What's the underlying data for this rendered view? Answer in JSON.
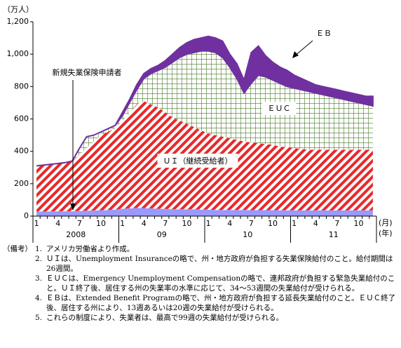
{
  "chart_data": {
    "type": "stacked-area",
    "y_unit": "（万人）",
    "x_unit_month": "(月)",
    "x_unit_year": "(年)",
    "categories": [
      "1",
      null,
      null,
      "4",
      null,
      null,
      "7",
      null,
      null,
      "10",
      null,
      null,
      "1",
      null,
      null,
      "4",
      null,
      null,
      "7",
      null,
      null,
      "10",
      null,
      null,
      "1",
      null,
      null,
      "4",
      null,
      null,
      "7",
      null,
      null,
      "10",
      null,
      null,
      "1",
      null,
      null,
      "4",
      null,
      null,
      "7",
      null,
      null,
      "10",
      null,
      null
    ],
    "year_labels": [
      "2008",
      "09",
      "10",
      "11"
    ],
    "ylim": [
      0,
      1200
    ],
    "yticks": [
      0,
      200,
      400,
      600,
      800,
      {
        "value": 1000,
        "label": "1,000"
      },
      {
        "value": 1200,
        "label": "1,200"
      }
    ],
    "series": [
      {
        "name": "新規失業保険申請者",
        "color": "#9999ff",
        "pattern": "solid",
        "values": [
          28,
          28,
          29,
          30,
          30,
          30,
          32,
          33,
          35,
          36,
          38,
          40,
          45,
          48,
          50,
          50,
          48,
          45,
          44,
          42,
          42,
          42,
          42,
          40,
          40,
          38,
          38,
          38,
          38,
          38,
          37,
          37,
          37,
          37,
          36,
          36,
          35,
          35,
          35,
          35,
          35,
          35,
          35,
          35,
          35,
          35,
          35,
          35
        ]
      },
      {
        "name": "ＵＩ（継続受給者）",
        "color": "#e8282a",
        "pattern": "hatch",
        "values": [
          282,
          287,
          291,
          295,
          300,
          310,
          348,
          387,
          425,
          464,
          482,
          505,
          545,
          592,
          640,
          660,
          642,
          625,
          596,
          568,
          548,
          528,
          508,
          490,
          470,
          462,
          452,
          442,
          432,
          422,
          418,
          413,
          408,
          403,
          394,
          389,
          385,
          380,
          375,
          375,
          375,
          375,
          375,
          375,
          375,
          375,
          375,
          375
        ]
      },
      {
        "name": "ＥＵＣ",
        "color": "#4a7a2a",
        "pattern": "grid",
        "values": [
          0,
          0,
          0,
          0,
          0,
          0,
          40,
          70,
          40,
          20,
          20,
          15,
          30,
          60,
          90,
          140,
          190,
          230,
          280,
          340,
          390,
          430,
          460,
          490,
          510,
          510,
          490,
          440,
          380,
          300,
          365,
          420,
          415,
          400,
          390,
          375,
          370,
          365,
          360,
          350,
          340,
          330,
          320,
          310,
          300,
          290,
          280,
          270
        ]
      },
      {
        "name": "ＥＢ",
        "color": "#7030a0",
        "pattern": "solid",
        "values": [
          0,
          0,
          0,
          0,
          0,
          0,
          0,
          0,
          0,
          0,
          0,
          0,
          20,
          20,
          30,
          30,
          30,
          30,
          40,
          50,
          60,
          70,
          80,
          80,
          90,
          90,
          100,
          80,
          90,
          80,
          190,
          180,
          130,
          110,
          100,
          100,
          80,
          70,
          60,
          50,
          50,
          50,
          50,
          50,
          50,
          50,
          50,
          60
        ]
      }
    ]
  },
  "notes": {
    "heading": "（備考）",
    "items": [
      {
        "num": "1.",
        "text": "アメリカ労働省より作成。"
      },
      {
        "num": "2.",
        "text": "ＵＩは、Unemployment Insuranceの略で、州・地方政府が負担する失業保険給付のこと。給付期間は26週間。"
      },
      {
        "num": "3.",
        "text": "ＥＵＣは、Emergency Unemployment Compensationの略で、連邦政府が負担する緊急失業給付のこと。ＵＩ終了後、居住する州の失業率の水準に応じて、34～53週間の失業給付が受けられる。"
      },
      {
        "num": "4.",
        "text": "ＥＢは、Extended Benefit Programの略で、州・地方政府が負担する延長失業給付のこと。ＥＵＣ終了後、居住する州により、13週あるいは20週の失業給付が受けられる。"
      },
      {
        "num": "5.",
        "text": "これらの制度により、失業者は、最高で99週の失業給付が受けられる。"
      }
    ]
  }
}
